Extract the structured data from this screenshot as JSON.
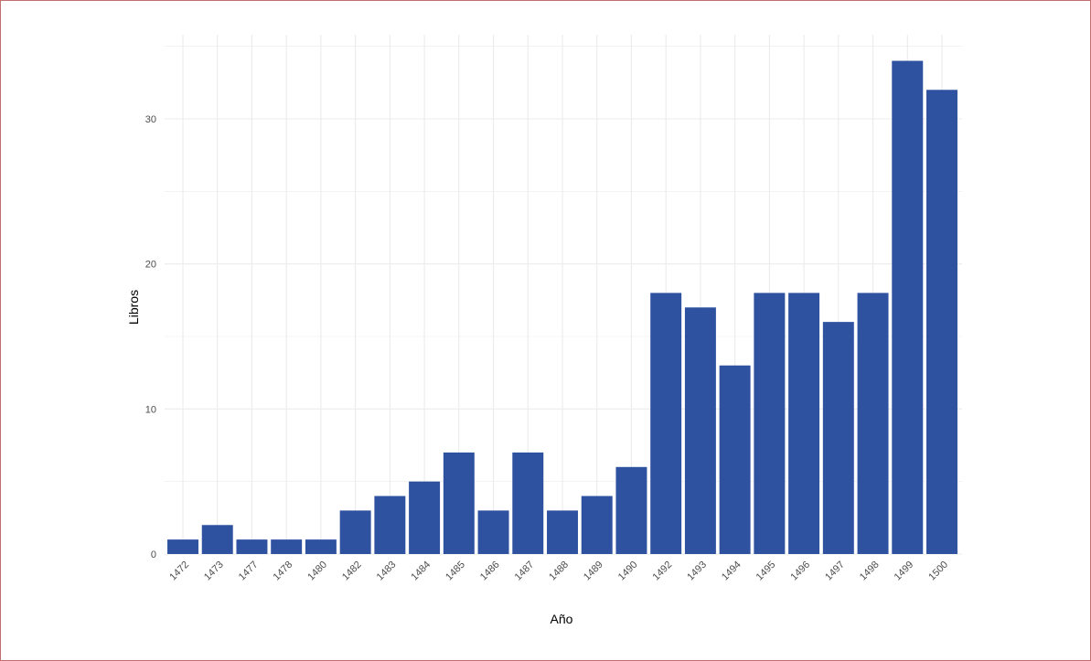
{
  "chart_data": {
    "type": "bar",
    "xlabel": "Año",
    "ylabel": "Libros",
    "categories": [
      "1472",
      "1473",
      "1477",
      "1478",
      "1480",
      "1482",
      "1483",
      "1484",
      "1485",
      "1486",
      "1487",
      "1488",
      "1489",
      "1490",
      "1492",
      "1493",
      "1494",
      "1495",
      "1496",
      "1497",
      "1498",
      "1499",
      "1500"
    ],
    "values": [
      1,
      2,
      1,
      1,
      1,
      3,
      4,
      5,
      7,
      3,
      7,
      3,
      4,
      6,
      18,
      17,
      13,
      18,
      18,
      16,
      18,
      34,
      32
    ],
    "ylim": [
      0,
      35
    ],
    "yticks": [
      "0",
      "10",
      "20",
      "30"
    ],
    "grid": true,
    "bar_color": "#2f52a0",
    "grid_color": "#ebebeb"
  }
}
